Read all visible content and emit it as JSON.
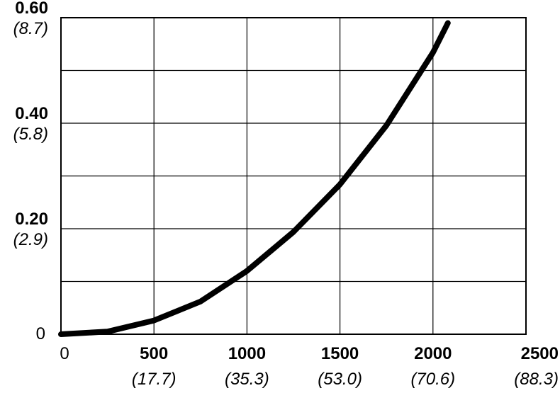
{
  "chart_data": {
    "type": "line",
    "title": "",
    "xlabel": "",
    "ylabel": "",
    "xlim": [
      0,
      2500
    ],
    "ylim": [
      0,
      0.6
    ],
    "grid": true,
    "x_ticks": [
      {
        "value": 0,
        "label": "0",
        "sublabel": ""
      },
      {
        "value": 500,
        "label": "500",
        "sublabel": "(17.7)"
      },
      {
        "value": 1000,
        "label": "1000",
        "sublabel": "(35.3)"
      },
      {
        "value": 1500,
        "label": "1500",
        "sublabel": "(53.0)"
      },
      {
        "value": 2000,
        "label": "2000",
        "sublabel": "(70.6)"
      },
      {
        "value": 2500,
        "label": "2500",
        "sublabel": "(88.3)"
      }
    ],
    "y_ticks": [
      {
        "value": 0,
        "label": "0",
        "sublabel": ""
      },
      {
        "value": 0.2,
        "label": "0.20",
        "sublabel": "(2.9)"
      },
      {
        "value": 0.4,
        "label": "0.40",
        "sublabel": "(5.8)"
      },
      {
        "value": 0.6,
        "label": "0.60",
        "sublabel": "(8.7)"
      }
    ],
    "x_grid_values": [
      500,
      1000,
      1500,
      2000
    ],
    "y_grid_values": [
      0.1,
      0.2,
      0.3,
      0.4,
      0.5
    ],
    "series": [
      {
        "color": "#000000",
        "x": [
          0,
          250,
          500,
          750,
          1000,
          1250,
          1500,
          1750,
          2000,
          2080
        ],
        "y": [
          0.0,
          0.005,
          0.026,
          0.062,
          0.12,
          0.194,
          0.284,
          0.396,
          0.534,
          0.59
        ]
      }
    ]
  }
}
